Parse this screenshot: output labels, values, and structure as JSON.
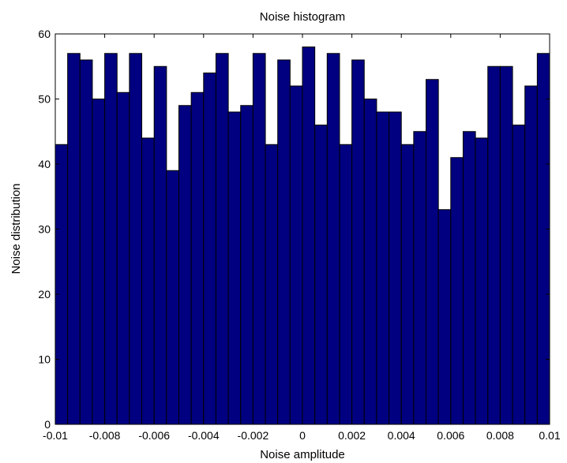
{
  "chart_data": {
    "type": "bar",
    "title": "Noise histogram",
    "xlabel": "Noise amplitude",
    "ylabel": "Noise distribution",
    "xlim": [
      -0.01,
      0.01
    ],
    "ylim": [
      0,
      60
    ],
    "xticks": [
      -0.01,
      -0.008,
      -0.006,
      -0.004,
      -0.002,
      0,
      0.002,
      0.004,
      0.006,
      0.008,
      0.01
    ],
    "xtick_labels": [
      "-0.01",
      "-0.008",
      "-0.006",
      "-0.004",
      "-0.002",
      "0",
      "0.002",
      "0.004",
      "0.006",
      "0.008",
      "0.01"
    ],
    "yticks": [
      0,
      10,
      20,
      30,
      40,
      50,
      60
    ],
    "ytick_labels": [
      "0",
      "10",
      "20",
      "30",
      "40",
      "50",
      "60"
    ],
    "bin_count": 40,
    "values": [
      43,
      57,
      56,
      50,
      57,
      51,
      57,
      44,
      55,
      39,
      49,
      51,
      54,
      57,
      48,
      49,
      57,
      43,
      56,
      52,
      58,
      46,
      57,
      43,
      56,
      50,
      48,
      48,
      43,
      45,
      53,
      33,
      41,
      45,
      44,
      55,
      55,
      46,
      52,
      57
    ],
    "bar_color": "#000080",
    "edge_color": "#000000",
    "grid": false
  }
}
